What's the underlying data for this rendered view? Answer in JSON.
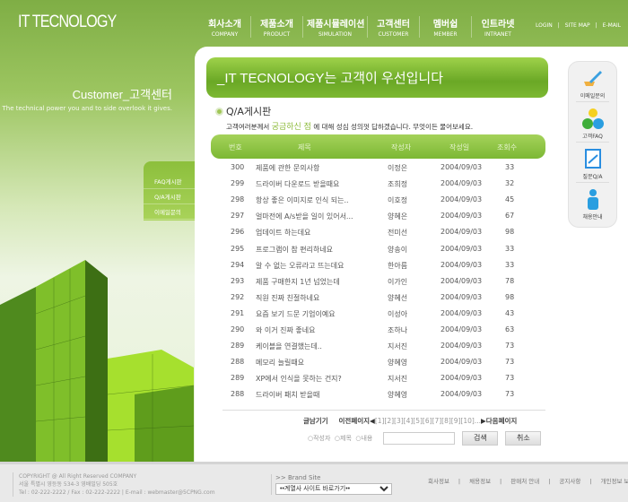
{
  "header": {
    "logo": "IT TECNOLOGY",
    "nav": [
      {
        "ko": "회사소개",
        "en": "COMPANY"
      },
      {
        "ko": "제품소개",
        "en": "PRODUCT"
      },
      {
        "ko": "제품시뮬레이션",
        "en": "SIMULATION"
      },
      {
        "ko": "고객센터",
        "en": "CUSTOMER"
      },
      {
        "ko": "멤버쉽",
        "en": "MEMBER"
      },
      {
        "ko": "인트라넷",
        "en": "INTRANET"
      }
    ],
    "util": [
      "LOGIN",
      "|",
      "SITE MAP",
      "|",
      "E-MAIL"
    ]
  },
  "side": {
    "title": "Customer_고객센터",
    "subtitle": "The technical power you and to side overlook it gives.",
    "menu": [
      "FAQ게시판",
      "Q/A게시판",
      "이메일문의"
    ]
  },
  "banner": "_IT TECNOLOGY는 고객이 우선입니다",
  "quick": [
    {
      "label": "이메일문의",
      "icon": "pencil-icon"
    },
    {
      "label": "고객FAQ",
      "icon": "people-idea-icon"
    },
    {
      "label": "질문Q/A",
      "icon": "clipboard-icon"
    },
    {
      "label": "채용안내",
      "icon": "person-icon"
    }
  ],
  "board": {
    "title": "Q/A게시판",
    "desc_pre": "고객여러분께서 ",
    "desc_hl": "궁금하신 점",
    "desc_post": " 에 대해 성심 성의껏 답하겠습니다. 무엇이든 물어보세요.",
    "headers": [
      "번호",
      "제목",
      "작성자",
      "작성일",
      "조회수"
    ],
    "rows": [
      [
        "300",
        "제품에 관한 문의사항",
        "이정은",
        "2004/09/03",
        "33"
      ],
      [
        "299",
        "드라이버 다운로드 받을때요",
        "조희정",
        "2004/09/03",
        "32"
      ],
      [
        "298",
        "항상 좋은 이미지로 인식 되는..",
        "이호정",
        "2004/09/03",
        "45"
      ],
      [
        "297",
        "얼마전에 A/s받을 일이 있어서...",
        "양혜은",
        "2004/09/03",
        "67"
      ],
      [
        "296",
        "업데이트 하는데요",
        "전미선",
        "2004/09/03",
        "98"
      ],
      [
        "295",
        "프로그램이 참 편리하네요",
        "양송이",
        "2004/09/03",
        "33"
      ],
      [
        "294",
        "알 수 없는 오류라고 뜨는데요",
        "한아름",
        "2004/09/03",
        "33"
      ],
      [
        "293",
        "제품 구매한지 1년 넘었는데",
        "이가인",
        "2004/09/03",
        "78"
      ],
      [
        "292",
        "직원 진짜 친절하네요",
        "양혜선",
        "2004/09/03",
        "98"
      ],
      [
        "291",
        "요즘 보기 드문 기업이예요",
        "이성아",
        "2004/09/03",
        "43"
      ],
      [
        "290",
        "와 이거 진짜 좋네요",
        "조하나",
        "2004/09/03",
        "63"
      ],
      [
        "289",
        "케이블을 연결했는데..",
        "지서진",
        "2004/09/03",
        "73"
      ],
      [
        "288",
        "메모리 늘릴때요",
        "양혜영",
        "2004/09/03",
        "73"
      ],
      [
        "289",
        "XP에서 인식을 못하는 건지?",
        "지서진",
        "2004/09/03",
        "73"
      ],
      [
        "288",
        "드라이버 패치 받을때",
        "양혜영",
        "2004/09/03",
        "73"
      ]
    ],
    "pager": {
      "write": "글남기기",
      "prev": "이전페이지",
      "pages": "[1][2][3][4][5][6][7][8][9][10]...",
      "next": "다음페이지"
    },
    "search": {
      "options": [
        "작성자",
        "제목",
        "내용"
      ],
      "value": "",
      "search_btn": "검색",
      "cancel_btn": "취소"
    }
  },
  "footer": {
    "copy": [
      "COPYRIGHT @ All Right Reserved COMPANY",
      "서울 특별시 영등동 534-3 영배빌딩 505호",
      "Tel : 02-222-2222 / Fax : 02-222-2222 | E-mail : webmaster@5CPNG.com"
    ],
    "brand_label": ">> Brand Site",
    "brand_select": "••계열사 사이트 바로가기••",
    "links": [
      "회사정보",
      "|",
      "채용정보",
      "|",
      "판매처 안내",
      "|",
      "공지사항",
      "|",
      "개인정보 보호정책"
    ]
  }
}
